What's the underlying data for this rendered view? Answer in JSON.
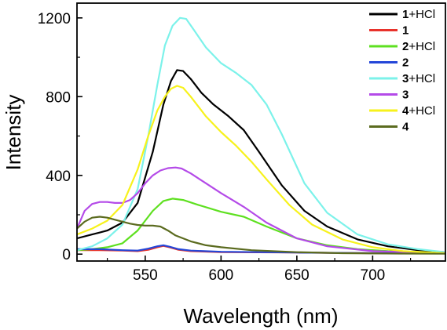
{
  "chart_data": {
    "type": "line",
    "xlabel": "Wavelength (nm)",
    "ylabel": "Intensity",
    "xlim": [
      505,
      748
    ],
    "ylim": [
      -35,
      1275
    ],
    "xticks": [
      550,
      600,
      650,
      700
    ],
    "xtick_labels": [
      "550",
      "600",
      "650",
      "700"
    ],
    "yticks": [
      0,
      400,
      800,
      1200
    ],
    "ytick_labels": [
      "0",
      "400",
      "800",
      "1200"
    ],
    "grid": false,
    "legend_position": "top-right",
    "series": [
      {
        "name": "1+HCl",
        "num": "1",
        "suffix": "+HCl",
        "color": "#000000",
        "x": [
          505,
          515,
          525,
          535,
          545,
          555,
          562,
          567,
          571,
          575,
          580,
          587,
          595,
          605,
          615,
          625,
          640,
          655,
          670,
          690,
          710,
          730,
          748
        ],
        "y": [
          80,
          100,
          120,
          160,
          260,
          520,
          760,
          880,
          935,
          930,
          890,
          820,
          760,
          700,
          630,
          520,
          350,
          220,
          140,
          75,
          40,
          20,
          10
        ]
      },
      {
        "name": "1",
        "num": "1",
        "suffix": "",
        "color": "#e8322b",
        "x": [
          505,
          520,
          535,
          545,
          552,
          558,
          562,
          566,
          572,
          580,
          600,
          650,
          700,
          748
        ],
        "y": [
          20,
          20,
          18,
          15,
          22,
          35,
          42,
          35,
          22,
          15,
          10,
          8,
          5,
          5
        ]
      },
      {
        "name": "2+HCl",
        "num": "2",
        "suffix": "+HCl",
        "color": "#5ee020",
        "x": [
          505,
          515,
          525,
          535,
          545,
          555,
          562,
          568,
          575,
          585,
          600,
          615,
          630,
          650,
          670,
          690,
          710,
          730,
          748
        ],
        "y": [
          20,
          25,
          35,
          55,
          120,
          220,
          270,
          282,
          275,
          250,
          215,
          190,
          140,
          80,
          45,
          25,
          15,
          10,
          5
        ]
      },
      {
        "name": "2",
        "num": "2",
        "suffix": "",
        "color": "#2446d8",
        "x": [
          505,
          520,
          535,
          545,
          552,
          558,
          562,
          566,
          572,
          580,
          600,
          650,
          700,
          748
        ],
        "y": [
          25,
          25,
          20,
          18,
          28,
          40,
          45,
          38,
          25,
          18,
          12,
          8,
          5,
          5
        ]
      },
      {
        "name": "3+HCl",
        "num": "3",
        "suffix": "+HCl",
        "color": "#7cf2ea",
        "x": [
          505,
          515,
          525,
          535,
          545,
          552,
          558,
          563,
          568,
          573,
          577,
          582,
          590,
          600,
          610,
          620,
          630,
          640,
          655,
          670,
          690,
          710,
          730,
          748
        ],
        "y": [
          20,
          40,
          80,
          150,
          330,
          600,
          860,
          1060,
          1160,
          1200,
          1195,
          1140,
          1050,
          970,
          920,
          860,
          760,
          610,
          360,
          210,
          100,
          50,
          25,
          10
        ]
      },
      {
        "name": "3",
        "num": "3",
        "suffix": "",
        "color": "#b44ae8",
        "x": [
          505,
          510,
          515,
          520,
          525,
          530,
          535,
          540,
          545,
          550,
          555,
          560,
          565,
          570,
          574,
          580,
          590,
          600,
          615,
          630,
          650,
          670,
          700,
          748
        ],
        "y": [
          130,
          220,
          255,
          265,
          265,
          260,
          260,
          275,
          310,
          360,
          400,
          425,
          437,
          440,
          435,
          410,
          360,
          310,
          240,
          160,
          80,
          40,
          15,
          5
        ]
      },
      {
        "name": "4+HCl",
        "num": "4",
        "suffix": "+HCl",
        "color": "#f7f21c",
        "x": [
          505,
          515,
          525,
          535,
          545,
          552,
          558,
          563,
          567,
          571,
          575,
          580,
          590,
          600,
          610,
          620,
          630,
          645,
          660,
          680,
          700,
          720,
          748
        ],
        "y": [
          100,
          130,
          170,
          250,
          430,
          600,
          730,
          800,
          840,
          855,
          845,
          800,
          700,
          620,
          550,
          470,
          380,
          250,
          150,
          75,
          35,
          15,
          5
        ]
      },
      {
        "name": "4",
        "num": "4",
        "suffix": "",
        "color": "#5b6b1f",
        "x": [
          505,
          510,
          515,
          520,
          525,
          530,
          535,
          540,
          545,
          550,
          555,
          560,
          565,
          570,
          580,
          590,
          600,
          620,
          650,
          680,
          720,
          748
        ],
        "y": [
          130,
          165,
          185,
          190,
          185,
          175,
          165,
          155,
          148,
          145,
          145,
          140,
          120,
          95,
          65,
          45,
          35,
          20,
          10,
          5,
          3,
          2
        ]
      }
    ]
  }
}
